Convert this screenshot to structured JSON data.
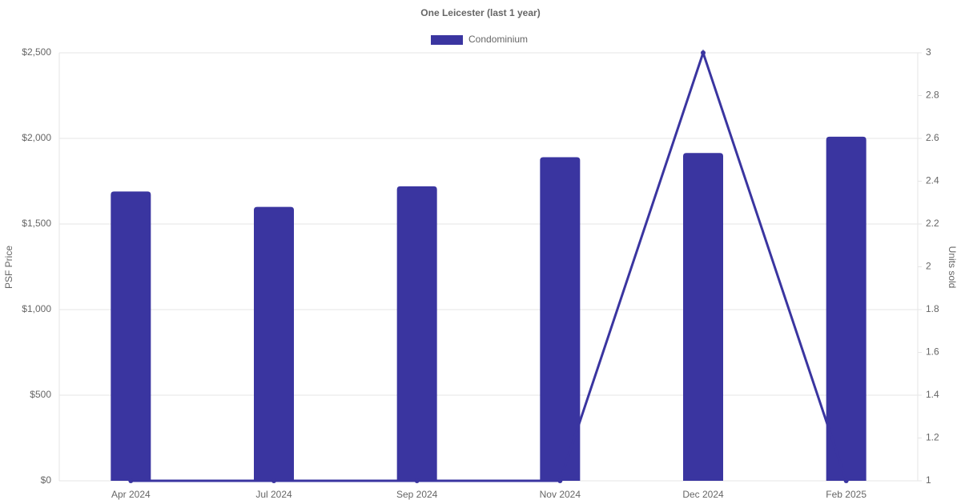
{
  "chart_data": {
    "type": "bar",
    "title": "One Leicester (last 1 year)",
    "categories": [
      "Apr 2024",
      "Jul 2024",
      "Sep 2024",
      "Nov 2024",
      "Dec 2024",
      "Feb 2025"
    ],
    "series": [
      {
        "name": "Condominium",
        "color": "#3a35a0",
        "type": "bar",
        "values": [
          1690,
          1600,
          1720,
          1890,
          1915,
          2010
        ]
      },
      {
        "color": "#3a35a0",
        "type": "line",
        "axis": "y2",
        "values": [
          1,
          1,
          1,
          1,
          3,
          1
        ]
      }
    ],
    "ylabel": "PSF Price",
    "y2label": "Units sold",
    "ylim": [
      0,
      2500
    ],
    "yticks": [
      {
        "value": 0,
        "label": "$0"
      },
      {
        "value": 500,
        "label": "$500"
      },
      {
        "value": 1000,
        "label": "$1,000"
      },
      {
        "value": 1500,
        "label": "$1,500"
      },
      {
        "value": 2000,
        "label": "$2,000"
      },
      {
        "value": 2500,
        "label": "$2,500"
      }
    ],
    "y2lim": [
      1,
      3
    ],
    "y2ticks": [
      1,
      1.2,
      1.4,
      1.6,
      1.8,
      2,
      2.2,
      2.4,
      2.6,
      2.8,
      3
    ],
    "grid": true,
    "legend": "top"
  }
}
